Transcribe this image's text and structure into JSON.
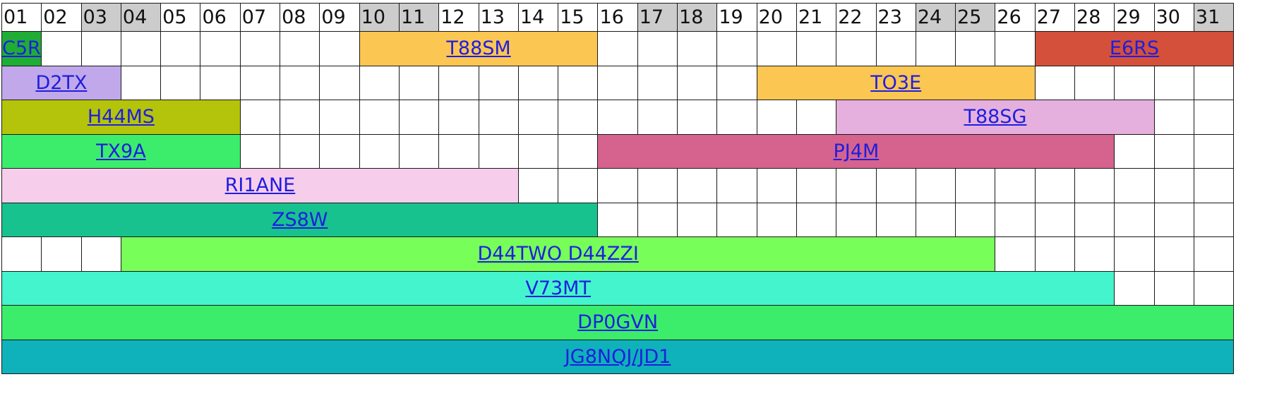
{
  "days": [
    {
      "d": "01",
      "we": false
    },
    {
      "d": "02",
      "we": false
    },
    {
      "d": "03",
      "we": true
    },
    {
      "d": "04",
      "we": true
    },
    {
      "d": "05",
      "we": false
    },
    {
      "d": "06",
      "we": false
    },
    {
      "d": "07",
      "we": false
    },
    {
      "d": "08",
      "we": false
    },
    {
      "d": "09",
      "we": false
    },
    {
      "d": "10",
      "we": true
    },
    {
      "d": "11",
      "we": true
    },
    {
      "d": "12",
      "we": false
    },
    {
      "d": "13",
      "we": false
    },
    {
      "d": "14",
      "we": false
    },
    {
      "d": "15",
      "we": false
    },
    {
      "d": "16",
      "we": false
    },
    {
      "d": "17",
      "we": true
    },
    {
      "d": "18",
      "we": true
    },
    {
      "d": "19",
      "we": false
    },
    {
      "d": "20",
      "we": false
    },
    {
      "d": "21",
      "we": false
    },
    {
      "d": "22",
      "we": false
    },
    {
      "d": "23",
      "we": false
    },
    {
      "d": "24",
      "we": true
    },
    {
      "d": "25",
      "we": true
    },
    {
      "d": "26",
      "we": false
    },
    {
      "d": "27",
      "we": false
    },
    {
      "d": "28",
      "we": false
    },
    {
      "d": "29",
      "we": false
    },
    {
      "d": "30",
      "we": false
    },
    {
      "d": "31",
      "we": true
    }
  ],
  "rows": [
    [
      {
        "label": "C5R",
        "start": 1,
        "end": 1,
        "color": "#1fad36",
        "left": true
      },
      {
        "label": "T88SM",
        "start": 10,
        "end": 15,
        "color": "#fcc652"
      },
      {
        "label": "E6RS",
        "start": 27,
        "end": 31,
        "color": "#d4503a"
      }
    ],
    [
      {
        "label": "D2TX",
        "start": 1,
        "end": 3,
        "color": "#c0a8ea"
      },
      {
        "label": "TO3E",
        "start": 20,
        "end": 26,
        "color": "#fcc652"
      }
    ],
    [
      {
        "label": "H44MS",
        "start": 1,
        "end": 6,
        "color": "#b4c40a"
      },
      {
        "label": "T88SG",
        "start": 22,
        "end": 29,
        "color": "#e5b0dd"
      }
    ],
    [
      {
        "label": "TX9A",
        "start": 1,
        "end": 6,
        "color": "#3bed6b"
      },
      {
        "label": "PJ4M",
        "start": 16,
        "end": 28,
        "color": "#d5638e"
      }
    ],
    [
      {
        "label": "RI1ANE",
        "start": 1,
        "end": 13,
        "color": "#f7cdec"
      }
    ],
    [
      {
        "label": "ZS8W",
        "start": 1,
        "end": 15,
        "color": "#17c28f"
      }
    ],
    [
      {
        "label": "D44TWO D44ZZI",
        "start": 4,
        "end": 25,
        "color": "#78fe58"
      }
    ],
    [
      {
        "label": "V73MT",
        "start": 1,
        "end": 28,
        "color": "#44f4cd"
      }
    ],
    [
      {
        "label": "DP0GVN",
        "start": 1,
        "end": 31,
        "color": "#3bed6b"
      }
    ],
    [
      {
        "label": "JG8NQJ/JD1",
        "start": 1,
        "end": 31,
        "color": "#0fb1ba"
      }
    ]
  ]
}
